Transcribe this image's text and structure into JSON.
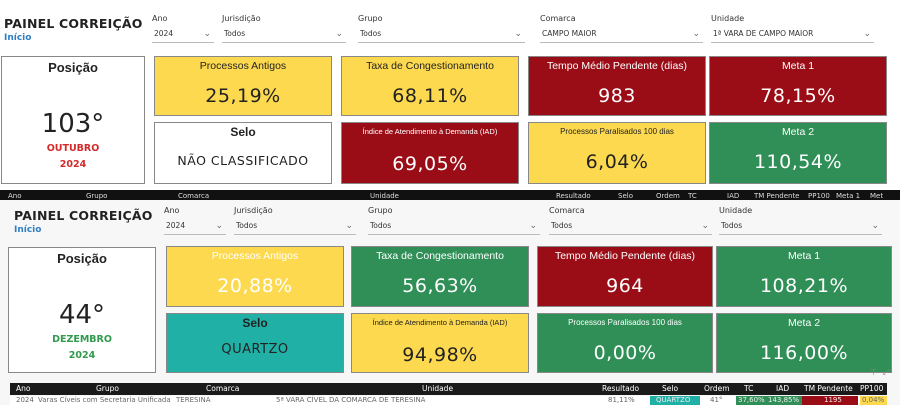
{
  "panel1": {
    "title": "PAINEL CORREIÇÃO",
    "subtitle": "Início",
    "filters": [
      {
        "label": "Ano",
        "value": "2024"
      },
      {
        "label": "Jurisdição",
        "value": "Todos"
      },
      {
        "label": "Grupo",
        "value": "Todos"
      },
      {
        "label": "Comarca",
        "value": "CAMPO MAIOR"
      },
      {
        "label": "Unidade",
        "value": "1ª VARA DE CAMPO MAIOR"
      }
    ],
    "position": {
      "label": "Posição",
      "value": "103°",
      "month": "OUTUBRO",
      "year": "2024",
      "month_color": "#d42a2a"
    },
    "cards": {
      "processos_antigos": {
        "title": "Processos Antigos",
        "value": "25,19%",
        "color": "yellow"
      },
      "taxa": {
        "title": "Taxa de Congestionamento",
        "value": "68,11%",
        "color": "yellow"
      },
      "tempo": {
        "title": "Tempo Médio Pendente (dias)",
        "value": "983",
        "color": "red"
      },
      "meta1": {
        "title": "Meta 1",
        "value": "78,15%",
        "color": "red"
      },
      "selo": {
        "title": "Selo",
        "value": "NÃO CLASSIFICADO",
        "color": "white"
      },
      "iad": {
        "title": "Índice de Atendimento à Demanda (IAD)",
        "value": "69,05%",
        "color": "red"
      },
      "paralisados": {
        "title": "Processos Paralisados 100 dias",
        "value": "6,04%",
        "color": "yellow"
      },
      "meta2": {
        "title": "Meta 2",
        "value": "110,54%",
        "color": "green"
      }
    },
    "strip_headers": [
      "Ano",
      "Grupo",
      "Comarca",
      "Unidade",
      "Resultado",
      "Selo",
      "Ordem",
      "TC",
      "IAD",
      "TM Pendente",
      "PP100",
      "Meta 1",
      "Met"
    ]
  },
  "panel2": {
    "title": "PAINEL CORREIÇÃO",
    "subtitle": "Início",
    "filters": [
      {
        "label": "Ano",
        "value": "2024"
      },
      {
        "label": "Jurisdição",
        "value": "Todos"
      },
      {
        "label": "Grupo",
        "value": "Todos"
      },
      {
        "label": "Comarca",
        "value": "Todos"
      },
      {
        "label": "Unidade",
        "value": "Todos"
      }
    ],
    "position": {
      "label": "Posição",
      "value": "44°",
      "month": "DEZEMBRO",
      "year": "2024",
      "month_color": "#2f9a4c"
    },
    "cards": {
      "processos_antigos": {
        "title": "Processos Antigos",
        "value": "20,88%",
        "color": "yellow"
      },
      "taxa": {
        "title": "Taxa de Congestionamento",
        "value": "56,63%",
        "color": "green"
      },
      "tempo": {
        "title": "Tempo Médio Pendente (dias)",
        "value": "964",
        "color": "red"
      },
      "meta1": {
        "title": "Meta 1",
        "value": "108,21%",
        "color": "green"
      },
      "selo": {
        "title": "Selo",
        "value": "QUARTZO",
        "color": "teal"
      },
      "iad": {
        "title": "Índice de Atendimento à Demanda (IAD)",
        "value": "94,98%",
        "color": "yellow"
      },
      "paralisados": {
        "title": "Processos Paralisados 100 dias",
        "value": "0,00%",
        "color": "green"
      },
      "meta2": {
        "title": "Meta 2",
        "value": "116,00%",
        "color": "green"
      }
    },
    "table": {
      "headers": [
        "Ano",
        "Grupo",
        "Comarca",
        "Unidade",
        "Resultado",
        "Selo",
        "Ordem",
        "TC",
        "IAD",
        "TM Pendente",
        "PP100"
      ],
      "row": [
        "2024",
        "Varas Cíveis com Secretaria Unificada",
        "TERESINA",
        "5ª VARA CÍVEL DA COMARCA DE TERESINA",
        "81,11%",
        "QUARTZO",
        "41°",
        "37,60%",
        "143,85%",
        "1195",
        "0,04%"
      ]
    }
  }
}
